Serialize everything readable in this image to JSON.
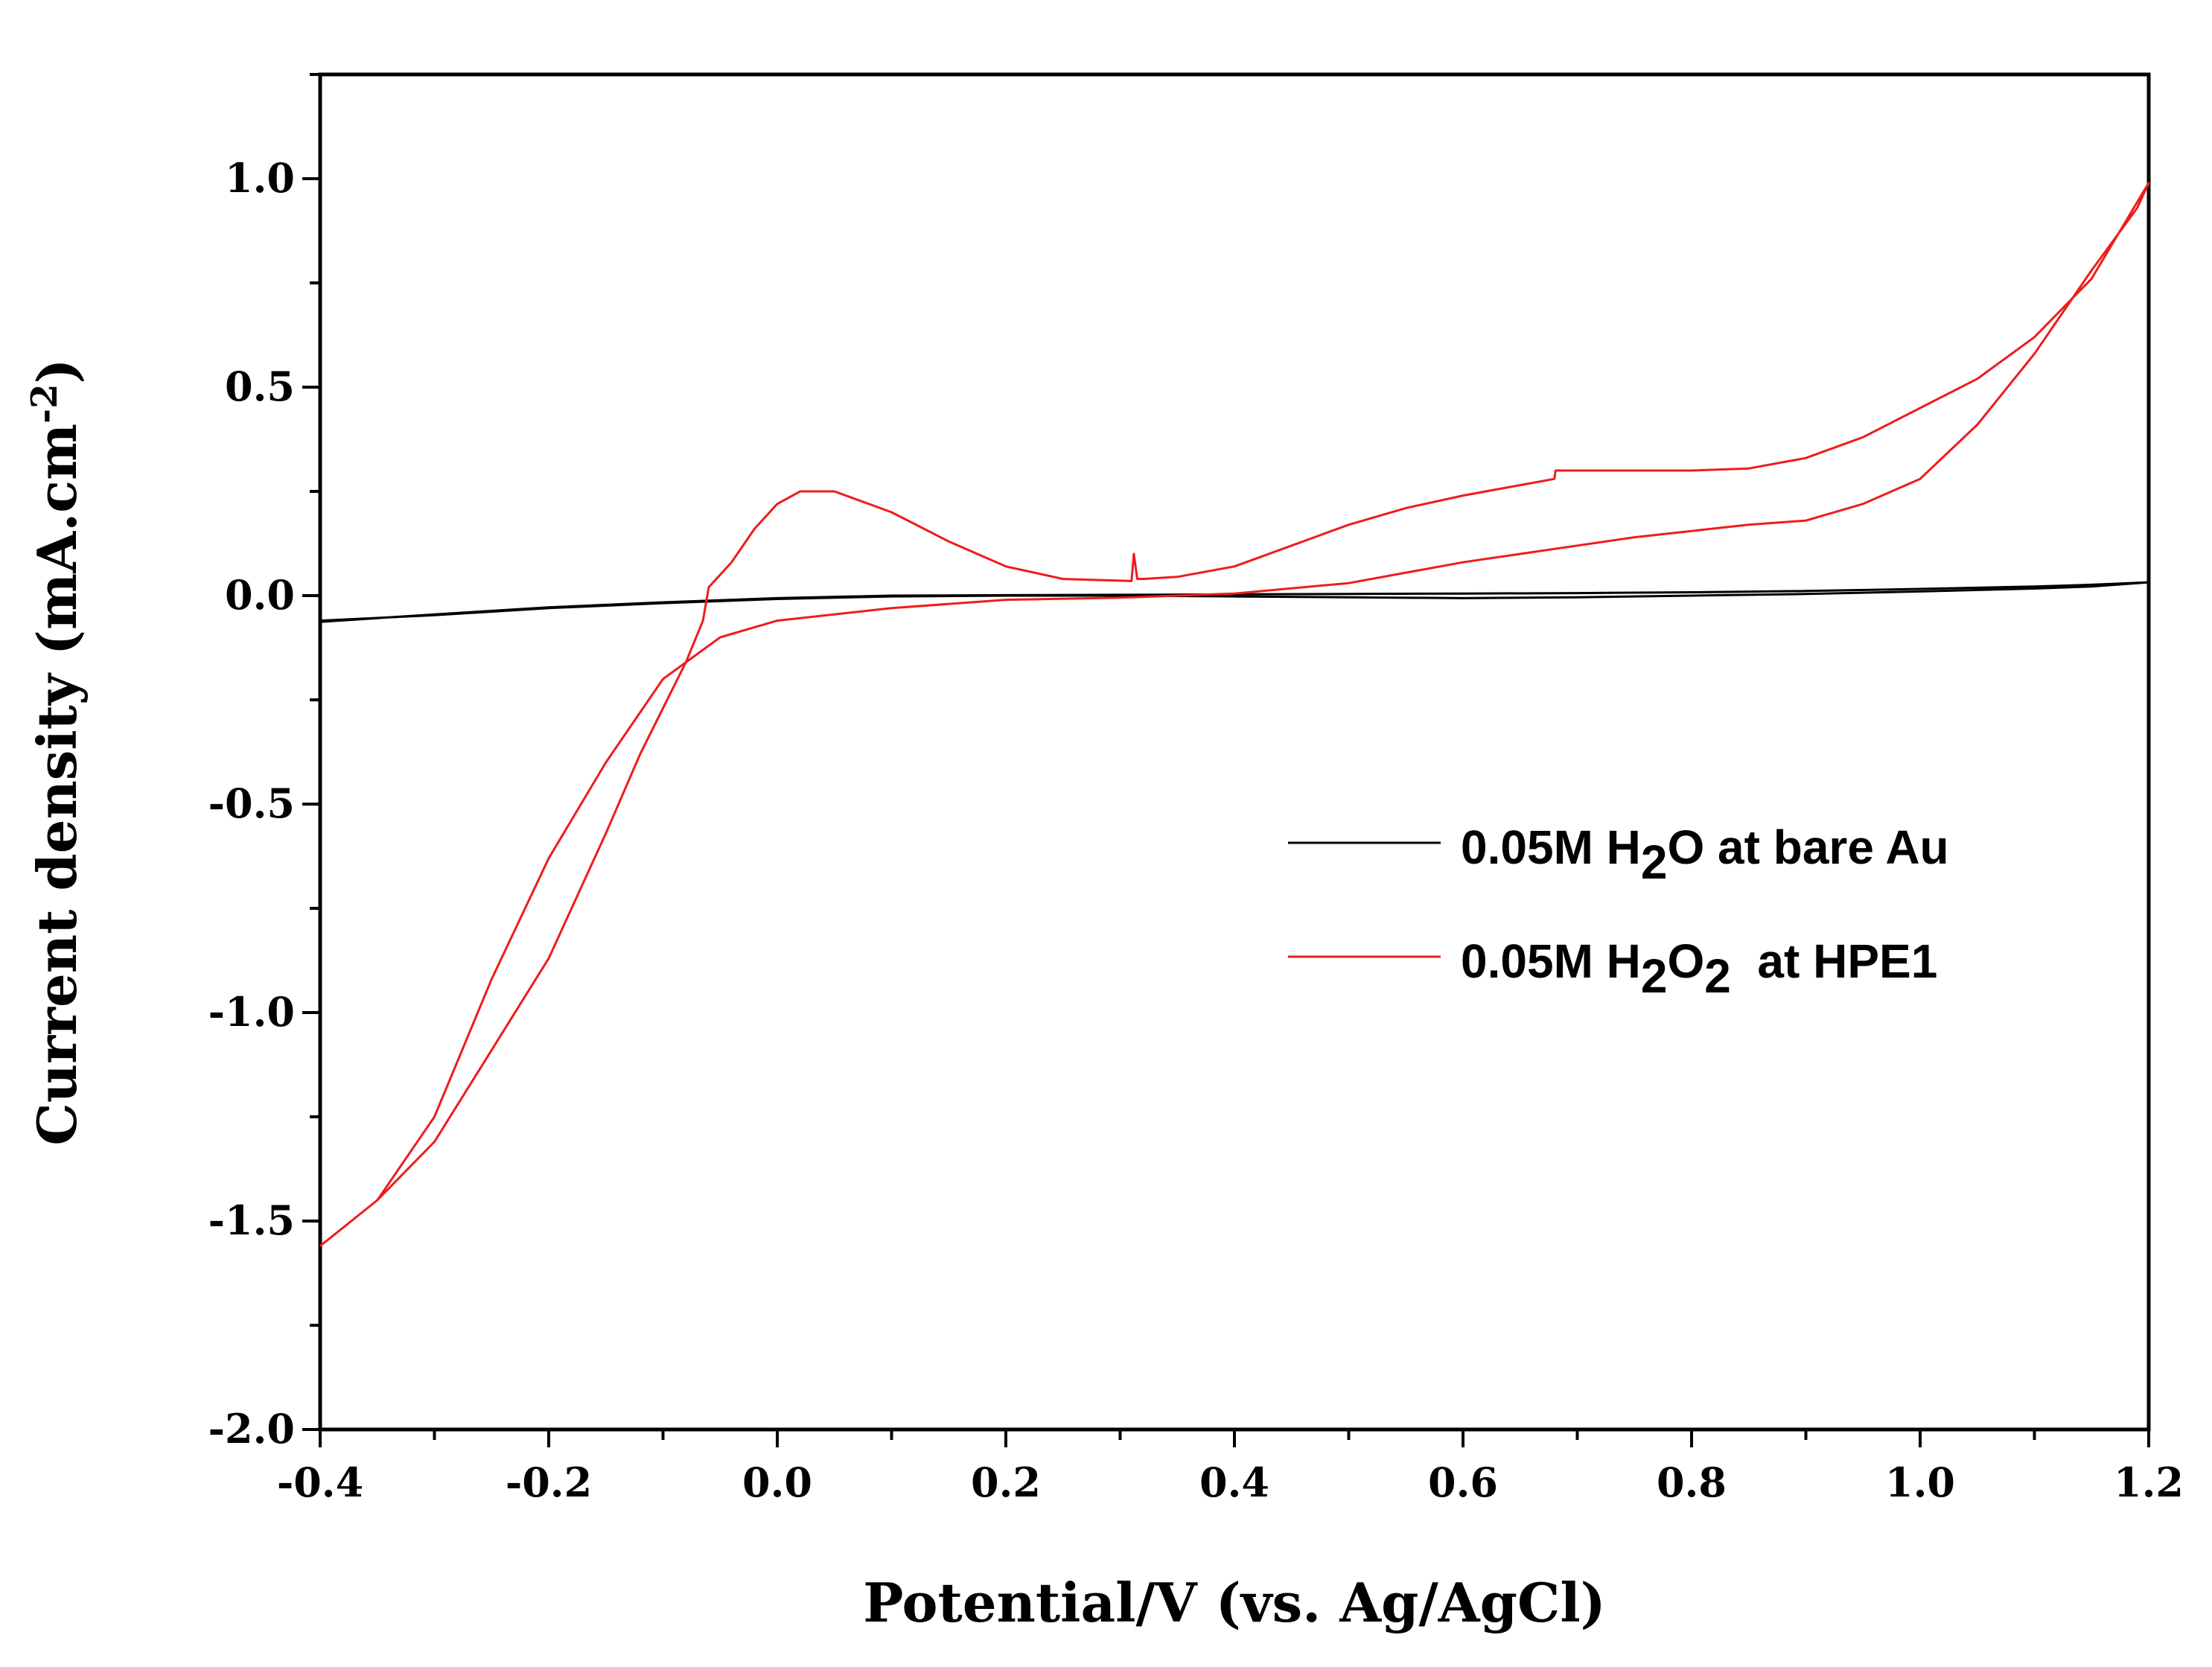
{
  "chart_data": {
    "type": "line",
    "xlabel": "Potential/V (vs. Ag/AgCl)",
    "ylabel": {
      "main": "Current density (mA.cm",
      "sup": "-2",
      "close": ")"
    },
    "xlim": [
      -0.4,
      1.2
    ],
    "ylim": [
      -2.0,
      1.25
    ],
    "xticks": [
      "-0.4",
      "-0.2",
      "0.0",
      "0.2",
      "0.4",
      "0.6",
      "0.8",
      "1.0",
      "1.2"
    ],
    "yticks": [
      "-2.0",
      "-1.5",
      "-1.0",
      "-0.5",
      "0.0",
      "0.5",
      "1.0"
    ],
    "grid": false,
    "legend_position": "center-right",
    "legend": [
      {
        "prefix": "0.05M H",
        "sub1": "2",
        "mid": "O at bare Au",
        "sub2": "",
        "suffix": "",
        "color": "#000000"
      },
      {
        "prefix": "0.05M H",
        "sub1": "2",
        "mid": "O",
        "sub2": "2",
        "suffix": "  at HPE1",
        "color": "#ee1c1c"
      }
    ],
    "series": [
      {
        "name": "0.05M H2O at bare Au",
        "color": "#000000",
        "x": [
          -0.4,
          -0.3,
          -0.2,
          -0.1,
          0.0,
          0.1,
          0.2,
          0.3,
          0.4,
          0.5,
          0.6,
          0.7,
          0.8,
          0.9,
          1.0,
          1.1,
          1.15,
          1.2,
          1.15,
          1.1,
          1.0,
          0.9,
          0.8,
          0.7,
          0.6,
          0.5,
          0.4,
          0.3,
          0.2,
          0.1,
          0.0,
          -0.1,
          -0.2,
          -0.3,
          -0.4
        ],
        "values": [
          -0.063,
          -0.045,
          -0.028,
          -0.016,
          -0.006,
          0.0,
          0.001,
          0.002,
          0.003,
          0.004,
          0.005,
          0.006,
          0.008,
          0.011,
          0.016,
          0.022,
          0.026,
          0.032,
          0.022,
          0.017,
          0.01,
          0.004,
          0.0,
          -0.004,
          -0.006,
          -0.004,
          -0.002,
          0.0,
          0.0,
          -0.002,
          -0.008,
          -0.018,
          -0.03,
          -0.047,
          -0.06
        ]
      },
      {
        "name": "0.05M H2O2 at HPE1",
        "color": "#ee1c1c",
        "x": [
          -0.4,
          -0.35,
          -0.3,
          -0.25,
          -0.2,
          -0.15,
          -0.12,
          -0.1,
          -0.08,
          -0.065,
          -0.06,
          -0.04,
          -0.02,
          0.0,
          0.02,
          0.05,
          0.1,
          0.15,
          0.2,
          0.25,
          0.31,
          0.312,
          0.315,
          0.32,
          0.35,
          0.4,
          0.45,
          0.5,
          0.55,
          0.6,
          0.65,
          0.68,
          0.681,
          0.7,
          0.75,
          0.8,
          0.85,
          0.9,
          0.95,
          1.0,
          1.05,
          1.1,
          1.15,
          1.2,
          1.19,
          1.15,
          1.1,
          1.05,
          1.0,
          0.95,
          0.9,
          0.85,
          0.8,
          0.75,
          0.7,
          0.6,
          0.5,
          0.4,
          0.3,
          0.2,
          0.1,
          0.0,
          -0.05,
          -0.1,
          -0.15,
          -0.2,
          -0.25,
          -0.3,
          -0.35,
          -0.4
        ],
        "values": [
          -1.56,
          -1.45,
          -1.31,
          -1.09,
          -0.87,
          -0.57,
          -0.38,
          -0.27,
          -0.16,
          -0.06,
          0.02,
          0.08,
          0.16,
          0.22,
          0.25,
          0.25,
          0.2,
          0.13,
          0.07,
          0.04,
          0.035,
          0.1,
          0.04,
          0.04,
          0.045,
          0.07,
          0.12,
          0.17,
          0.21,
          0.24,
          0.265,
          0.28,
          0.3,
          0.3,
          0.3,
          0.3,
          0.305,
          0.33,
          0.38,
          0.45,
          0.52,
          0.62,
          0.76,
          0.99,
          0.93,
          0.78,
          0.58,
          0.41,
          0.28,
          0.22,
          0.18,
          0.17,
          0.155,
          0.14,
          0.12,
          0.08,
          0.03,
          0.005,
          -0.005,
          -0.01,
          -0.03,
          -0.06,
          -0.1,
          -0.2,
          -0.4,
          -0.63,
          -0.92,
          -1.25,
          -1.45,
          -1.56
        ]
      }
    ]
  }
}
